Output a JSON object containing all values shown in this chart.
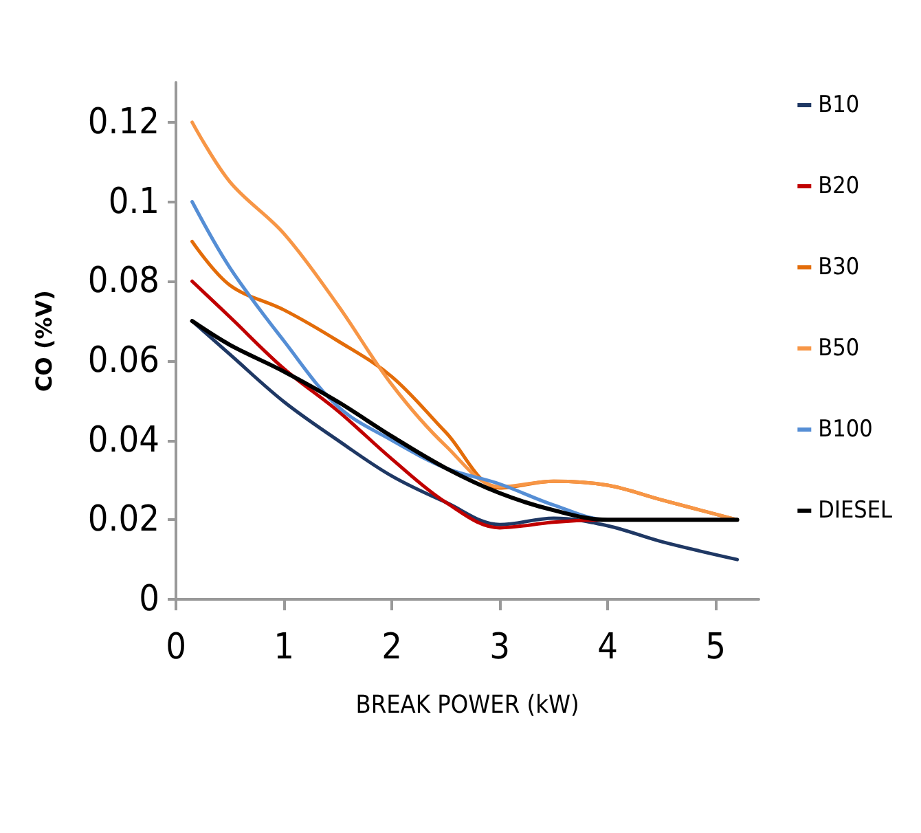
{
  "chart_data": {
    "type": "line",
    "xlabel": "BREAK POWER (kW)",
    "ylabel": "CO (%V)",
    "xlim": [
      0,
      5.4
    ],
    "xticks": [
      0,
      1,
      2,
      3,
      4,
      5
    ],
    "ylim": [
      0,
      0.13
    ],
    "yticks": [
      0,
      0.02,
      0.04,
      0.06,
      0.08,
      0.1,
      0.12
    ],
    "grid": false,
    "legend": "right",
    "marker": "none",
    "line_style": "solid",
    "x": [
      0.15,
      0.5,
      1,
      1.5,
      2,
      2.5,
      3,
      3.5,
      4,
      4.5,
      5.2
    ],
    "series": [
      {
        "name": "B10",
        "color": "#1f3864",
        "values": [
          0.07,
          0.0616,
          0.0497,
          0.04,
          0.031,
          0.0244,
          0.0188,
          0.0204,
          0.0185,
          0.0145,
          0.01
        ]
      },
      {
        "name": "B20",
        "color": "#c00000",
        "values": [
          0.08,
          0.071,
          0.058,
          0.0474,
          0.0353,
          0.0244,
          0.018,
          0.0194,
          0.02,
          null,
          0.02
        ]
      },
      {
        "name": "B30",
        "color": "#e36c09",
        "values": [
          0.09,
          0.079,
          0.0728,
          0.065,
          0.056,
          0.042,
          0.028,
          0.0297,
          0.0287,
          0.025,
          0.02
        ]
      },
      {
        "name": "B50",
        "color": "#f79646",
        "values": [
          0.12,
          0.105,
          0.092,
          0.074,
          0.054,
          0.0386,
          0.0283,
          0.0297,
          0.0287,
          0.025,
          0.02
        ]
      },
      {
        "name": "B100",
        "color": "#558ed5",
        "values": [
          0.1,
          0.0834,
          0.065,
          0.0485,
          0.04,
          0.033,
          0.029,
          0.0237,
          0.02,
          null,
          0.02
        ]
      },
      {
        "name": "DIESEL",
        "color": "#000000",
        "values": [
          0.07,
          0.064,
          0.0573,
          0.0497,
          0.041,
          0.033,
          0.0267,
          0.0224,
          0.02,
          0.02,
          0.02
        ]
      }
    ]
  }
}
